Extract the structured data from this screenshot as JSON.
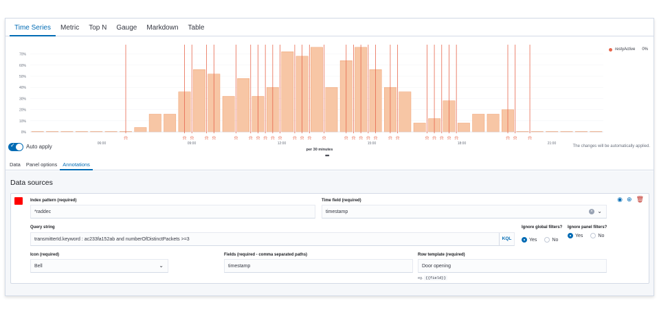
{
  "tabs": [
    "Time Series",
    "Metric",
    "Top N",
    "Gauge",
    "Markdown",
    "Table"
  ],
  "chart_data": {
    "type": "bar",
    "xlabel": "per 30 minutes",
    "x_ticks": [
      "06:00",
      "09:00",
      "12:00",
      "15:00",
      "18:00",
      "21:00"
    ],
    "y_ticks": [
      "0%",
      "10%",
      "20%",
      "30%",
      "40%",
      "50%",
      "60%",
      "70%"
    ],
    "ylim": [
      0,
      75
    ],
    "values": [
      0.5,
      0.5,
      0.5,
      0.5,
      0.5,
      0.5,
      0.5,
      4,
      16,
      16,
      36,
      56,
      52,
      32,
      48,
      32,
      40,
      72,
      68,
      76,
      40,
      64,
      76,
      56,
      40,
      36,
      8,
      12,
      28,
      8,
      16,
      16,
      20,
      0.5,
      0.5,
      0.5,
      0.5,
      0.5,
      0.5
    ],
    "annotation_bars": [
      6,
      10,
      10.5,
      11.5,
      12,
      13.5,
      14.5,
      15,
      15.5,
      16,
      16.5,
      17.5,
      18,
      18.5,
      19.5,
      21,
      21.5,
      22,
      22.5,
      23,
      24,
      24.5,
      26.5,
      27,
      27.5,
      28,
      28.5,
      32,
      32.5,
      33.5
    ],
    "bar_color": "#f7c6a5",
    "bar_stroke": "#f0a070",
    "annotation_color": "#e7664c"
  },
  "legend": {
    "label": "restyActive",
    "value": "0%"
  },
  "auto_apply": {
    "label": "Auto apply",
    "note": "The changes will be automatically applied.",
    "more": "•••"
  },
  "subtabs": [
    "Data",
    "Panel options",
    "Annotations"
  ],
  "annotations": {
    "title": "Data sources",
    "swatch_color": "#ff0000",
    "index_pattern": {
      "label": "Index pattern (required)",
      "value": "*raddec"
    },
    "time_field": {
      "label": "Time field (required)",
      "value": "timestamp"
    },
    "query": {
      "label": "Query string",
      "value": "transmitterId.keyword : ac233fa152ab and numberOfDistinctPackets >=3",
      "kql": "KQL"
    },
    "ignore_global": {
      "label": "Ignore global filters?",
      "yes": "Yes",
      "no": "No"
    },
    "ignore_panel": {
      "label": "Ignore panel filters?",
      "yes": "Yes",
      "no": "No"
    },
    "icon": {
      "label": "Icon (required)",
      "value": "Bell"
    },
    "fields": {
      "label": "Fields (required - comma separated paths)",
      "value": "timestamp"
    },
    "row_template": {
      "label": "Row template (required)",
      "value": "Door opening",
      "help_prefix": "eg.",
      "help_code": "{{field}}"
    }
  }
}
